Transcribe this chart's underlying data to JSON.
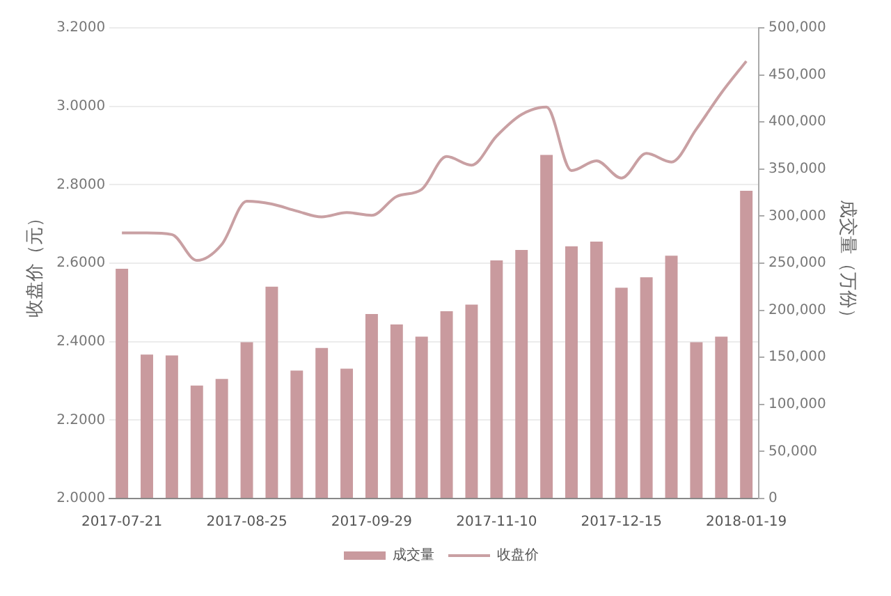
{
  "chart_data": {
    "type": "bar",
    "categories": [
      "2017-07-21",
      null,
      null,
      null,
      null,
      "2017-08-25",
      null,
      null,
      null,
      null,
      "2017-09-29",
      null,
      null,
      null,
      null,
      "2017-11-10",
      null,
      null,
      null,
      null,
      "2017-12-15",
      null,
      null,
      null,
      null,
      "2018-01-19"
    ],
    "ylabel": "收盘价（元）",
    "y2label": "成交量（万份）",
    "ylim": [
      2.0,
      3.2
    ],
    "yticks": [
      {
        "value": 2.0,
        "label": "2.0000"
      },
      {
        "value": 2.2,
        "label": "2.2000"
      },
      {
        "value": 2.4,
        "label": "2.4000"
      },
      {
        "value": 2.6,
        "label": "2.6000"
      },
      {
        "value": 2.8,
        "label": "2.8000"
      },
      {
        "value": 3.0,
        "label": "3.0000"
      },
      {
        "value": 3.2,
        "label": "3.2000"
      }
    ],
    "y2lim": [
      0,
      500000
    ],
    "y2ticks": [
      0,
      {
        "value": 50000,
        "label": "50,000"
      },
      {
        "value": 100000,
        "label": "100,000"
      },
      {
        "value": 150000,
        "label": "150,000"
      },
      {
        "value": 200000,
        "label": "200,000"
      },
      {
        "value": 250000,
        "label": "250,000"
      },
      {
        "value": 300000,
        "label": "300,000"
      },
      {
        "value": 350000,
        "label": "350,000"
      },
      {
        "value": 400000,
        "label": "400,000"
      },
      {
        "value": 450000,
        "label": "450,000"
      },
      {
        "value": 500000,
        "label": "500,000"
      }
    ],
    "series": [
      {
        "name": "成交量",
        "axis": "y2",
        "color": "#c99a9e",
        "values": [
          244000,
          153000,
          152000,
          120000,
          127000,
          166000,
          225000,
          136000,
          160000,
          138000,
          196000,
          185000,
          172000,
          199000,
          206000,
          253000,
          264000,
          365000,
          268000,
          273000,
          224000,
          235000,
          258000,
          166000,
          172000,
          327000
        ]
      },
      {
        "name": "收盘价",
        "type": "line",
        "color": "#c9a0a3",
        "values": [
          2.677,
          2.677,
          2.673,
          2.607,
          2.648,
          2.758,
          2.751,
          2.733,
          2.718,
          2.729,
          2.722,
          2.77,
          2.788,
          2.872,
          2.85,
          2.924,
          2.979,
          2.998,
          2.836,
          2.861,
          2.817,
          2.88,
          2.858,
          2.942,
          3.034,
          3.115
        ]
      }
    ],
    "grid": "y",
    "legend": "bottom",
    "marker": "none"
  }
}
